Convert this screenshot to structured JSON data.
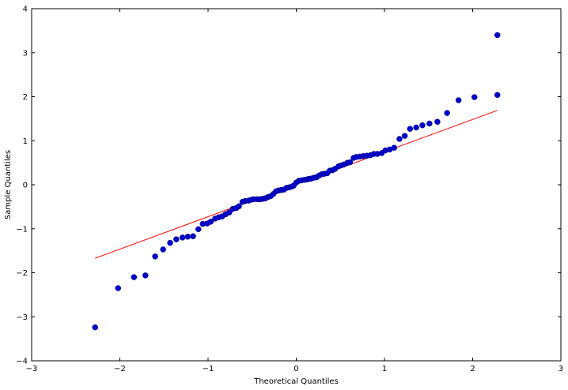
{
  "chart_data": {
    "type": "scatter",
    "title": "",
    "xlabel": "Theoretical Quantiles",
    "ylabel": "Sample Quantiles",
    "xlim": [
      -3,
      3
    ],
    "ylim": [
      -4,
      4
    ],
    "xticks": [
      "−3",
      "−2",
      "−1",
      "0",
      "1",
      "2",
      "3"
    ],
    "yticks": [
      "4",
      "3",
      "2",
      "1",
      "0",
      "−1",
      "−2",
      "−3",
      "−4"
    ],
    "grid": false,
    "marker_color": "#0000cc",
    "line_color": "#ff0000",
    "reference_line": {
      "x": [
        -2.28,
        2.28
      ],
      "y": [
        -1.67,
        1.69
      ]
    },
    "points": [
      [
        -2.28,
        -3.24
      ],
      [
        -2.02,
        -2.35
      ],
      [
        -1.84,
        -2.1
      ],
      [
        -1.71,
        -2.06
      ],
      [
        -1.6,
        -1.63
      ],
      [
        -1.51,
        -1.47
      ],
      [
        -1.43,
        -1.32
      ],
      [
        -1.36,
        -1.24
      ],
      [
        -1.29,
        -1.2
      ],
      [
        -1.23,
        -1.18
      ],
      [
        -1.17,
        -1.17
      ],
      [
        -1.11,
        -1.01
      ],
      [
        -1.06,
        -0.89
      ],
      [
        -1.01,
        -0.88
      ],
      [
        -0.97,
        -0.84
      ],
      [
        -0.92,
        -0.77
      ],
      [
        -0.88,
        -0.74
      ],
      [
        -0.84,
        -0.72
      ],
      [
        -0.8,
        -0.67
      ],
      [
        -0.76,
        -0.63
      ],
      [
        -0.72,
        -0.55
      ],
      [
        -0.68,
        -0.53
      ],
      [
        -0.65,
        -0.49
      ],
      [
        -0.61,
        -0.39
      ],
      [
        -0.58,
        -0.37
      ],
      [
        -0.54,
        -0.36
      ],
      [
        -0.51,
        -0.34
      ],
      [
        -0.48,
        -0.33
      ],
      [
        -0.44,
        -0.33
      ],
      [
        -0.41,
        -0.33
      ],
      [
        -0.38,
        -0.32
      ],
      [
        -0.35,
        -0.31
      ],
      [
        -0.32,
        -0.28
      ],
      [
        -0.29,
        -0.26
      ],
      [
        -0.26,
        -0.21
      ],
      [
        -0.23,
        -0.15
      ],
      [
        -0.2,
        -0.13
      ],
      [
        -0.17,
        -0.12
      ],
      [
        -0.14,
        -0.11
      ],
      [
        -0.11,
        -0.07
      ],
      [
        -0.08,
        -0.06
      ],
      [
        -0.05,
        -0.04
      ],
      [
        -0.03,
        -0.02
      ],
      [
        0.0,
        0.05
      ],
      [
        0.03,
        0.09
      ],
      [
        0.06,
        0.1
      ],
      [
        0.09,
        0.11
      ],
      [
        0.12,
        0.12
      ],
      [
        0.14,
        0.13
      ],
      [
        0.17,
        0.14
      ],
      [
        0.2,
        0.16
      ],
      [
        0.23,
        0.17
      ],
      [
        0.26,
        0.21
      ],
      [
        0.29,
        0.24
      ],
      [
        0.32,
        0.25
      ],
      [
        0.35,
        0.26
      ],
      [
        0.38,
        0.32
      ],
      [
        0.41,
        0.33
      ],
      [
        0.44,
        0.36
      ],
      [
        0.48,
        0.42
      ],
      [
        0.51,
        0.44
      ],
      [
        0.54,
        0.46
      ],
      [
        0.58,
        0.5
      ],
      [
        0.61,
        0.51
      ],
      [
        0.65,
        0.61
      ],
      [
        0.68,
        0.63
      ],
      [
        0.72,
        0.64
      ],
      [
        0.76,
        0.65
      ],
      [
        0.8,
        0.66
      ],
      [
        0.84,
        0.67
      ],
      [
        0.88,
        0.7
      ],
      [
        0.92,
        0.7
      ],
      [
        0.97,
        0.72
      ],
      [
        1.01,
        0.78
      ],
      [
        1.06,
        0.8
      ],
      [
        1.11,
        0.84
      ],
      [
        1.17,
        1.04
      ],
      [
        1.23,
        1.11
      ],
      [
        1.29,
        1.27
      ],
      [
        1.36,
        1.3
      ],
      [
        1.43,
        1.35
      ],
      [
        1.51,
        1.39
      ],
      [
        1.6,
        1.43
      ],
      [
        1.71,
        1.63
      ],
      [
        1.84,
        1.92
      ],
      [
        2.02,
        1.99
      ],
      [
        2.28,
        2.04
      ],
      [
        2.28,
        3.4
      ]
    ]
  }
}
